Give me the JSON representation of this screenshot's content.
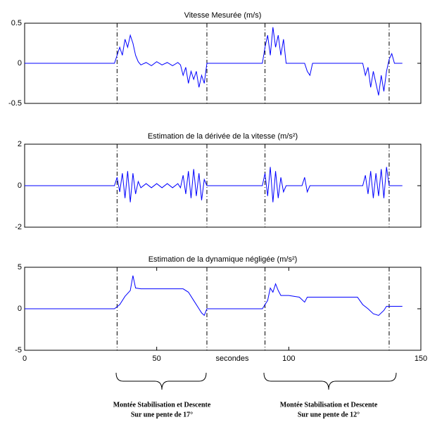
{
  "chart_data": [
    {
      "type": "line",
      "title": "Vitesse Mesurée (m/s)",
      "xlim": [
        0,
        150
      ],
      "ylim": [
        -0.5,
        0.5
      ],
      "yticks": [
        -0.5,
        0,
        0.5
      ],
      "vlines": [
        35,
        69,
        91,
        138
      ],
      "x": [
        0,
        34,
        35,
        36,
        37,
        38,
        39,
        40,
        41,
        42,
        43,
        44,
        46,
        48,
        50,
        52,
        54,
        56,
        58,
        59,
        60,
        61,
        62,
        63,
        64,
        65,
        66,
        67,
        68,
        69,
        90,
        91,
        92,
        93,
        94,
        95,
        96,
        97,
        98,
        99,
        106,
        107,
        108,
        109,
        128,
        129,
        130,
        131,
        132,
        133,
        134,
        135,
        136,
        137,
        138,
        139,
        140,
        143
      ],
      "series": [
        {
          "name": "Vitesse",
          "color": "#0000ff",
          "values": [
            0,
            0,
            0.1,
            0.2,
            0.1,
            0.3,
            0.2,
            0.35,
            0.25,
            0.1,
            0.02,
            -0.02,
            0.01,
            -0.03,
            0.02,
            -0.02,
            0.01,
            -0.03,
            0.01,
            -0.02,
            -0.15,
            -0.05,
            -0.25,
            -0.1,
            -0.2,
            -0.1,
            -0.3,
            -0.15,
            -0.25,
            0,
            0,
            0.2,
            0.35,
            0.1,
            0.45,
            0.2,
            0.35,
            0.1,
            0.3,
            0,
            0,
            -0.1,
            -0.15,
            0,
            0,
            -0.15,
            -0.05,
            -0.3,
            -0.1,
            -0.25,
            -0.4,
            -0.15,
            -0.35,
            -0.1,
            0.05,
            0.12,
            0,
            0
          ]
        }
      ]
    },
    {
      "type": "line",
      "title": "Estimation de la dérivée de la vitesse (m/s²)",
      "xlim": [
        0,
        150
      ],
      "ylim": [
        -2,
        2
      ],
      "yticks": [
        -2,
        0,
        2
      ],
      "vlines": [
        35,
        69,
        91,
        138
      ],
      "x": [
        0,
        34,
        35,
        36,
        37,
        38,
        39,
        40,
        41,
        42,
        43,
        44,
        46,
        48,
        50,
        52,
        54,
        56,
        58,
        59,
        60,
        61,
        62,
        63,
        64,
        65,
        66,
        67,
        68,
        69,
        90,
        91,
        92,
        93,
        94,
        95,
        96,
        97,
        98,
        99,
        105,
        106,
        107,
        108,
        128,
        129,
        130,
        131,
        132,
        133,
        134,
        135,
        136,
        137,
        138,
        143
      ],
      "series": [
        {
          "name": "Dérivée",
          "color": "#0000ff",
          "values": [
            0,
            0,
            0.4,
            -0.3,
            0.6,
            -0.6,
            0.7,
            -0.8,
            0.6,
            -0.4,
            0.2,
            -0.1,
            0.1,
            -0.1,
            0.1,
            -0.1,
            0.1,
            -0.1,
            0.1,
            -0.1,
            0.5,
            -0.4,
            0.7,
            -0.6,
            0.8,
            -0.5,
            0.6,
            -0.7,
            0.3,
            0,
            0,
            0.6,
            -0.5,
            0.9,
            -0.8,
            0.7,
            -0.6,
            0.4,
            -0.3,
            0,
            0,
            0.4,
            -0.3,
            0,
            0,
            0.5,
            -0.4,
            0.7,
            -0.6,
            0.6,
            -0.5,
            0.8,
            -0.6,
            0.9,
            0,
            0
          ]
        }
      ]
    },
    {
      "type": "line",
      "title": "Estimation de la dynamique négligée (m/s²)",
      "xlabel": "secondes",
      "xlim": [
        0,
        150
      ],
      "ylim": [
        -5,
        5
      ],
      "xticks": [
        0,
        50,
        100,
        150
      ],
      "yticks": [
        -5,
        0,
        5
      ],
      "vlines": [
        35,
        69,
        91,
        138
      ],
      "x": [
        0,
        34,
        36,
        38,
        40,
        41,
        42,
        44,
        46,
        60,
        62,
        64,
        66,
        67,
        68,
        69,
        70,
        90,
        92,
        93,
        94,
        95,
        96,
        97,
        100,
        104,
        106,
        107,
        126,
        128,
        130,
        132,
        134,
        136,
        137,
        143
      ],
      "series": [
        {
          "name": "Dynamique",
          "color": "#0000ff",
          "values": [
            0,
            0,
            0.5,
            1.5,
            2.2,
            4,
            2.5,
            2.4,
            2.4,
            2.4,
            2,
            1,
            0,
            -0.5,
            -0.8,
            0,
            0,
            0,
            1,
            2.5,
            2,
            3,
            2.2,
            1.6,
            1.6,
            1.4,
            0.8,
            1.4,
            1.4,
            0.5,
            0,
            -0.6,
            -0.8,
            -0.2,
            0.3,
            0.3
          ]
        }
      ]
    }
  ],
  "annotations": [
    {
      "line1": "Montée Stabilisation et Descente",
      "line2": "Sur une pente de 17°"
    },
    {
      "line1": "Montée Stabilisation et Descente",
      "line2": "Sur une pente de 12°"
    }
  ]
}
